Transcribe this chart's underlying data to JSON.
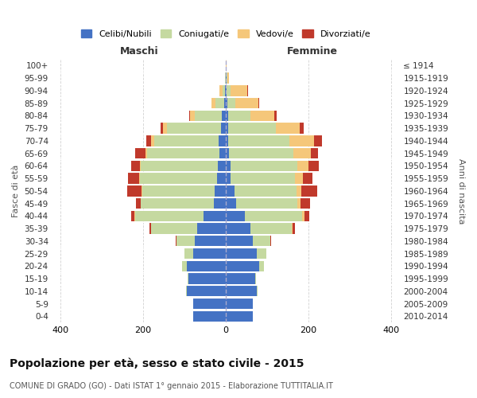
{
  "age_groups": [
    "0-4",
    "5-9",
    "10-14",
    "15-19",
    "20-24",
    "25-29",
    "30-34",
    "35-39",
    "40-44",
    "45-49",
    "50-54",
    "55-59",
    "60-64",
    "65-69",
    "70-74",
    "75-79",
    "80-84",
    "85-89",
    "90-94",
    "95-99",
    "100+"
  ],
  "birth_years": [
    "2010-2014",
    "2005-2009",
    "2000-2004",
    "1995-1999",
    "1990-1994",
    "1985-1989",
    "1980-1984",
    "1975-1979",
    "1970-1974",
    "1965-1969",
    "1960-1964",
    "1955-1959",
    "1950-1954",
    "1945-1949",
    "1940-1944",
    "1935-1939",
    "1930-1934",
    "1925-1929",
    "1920-1924",
    "1915-1919",
    "≤ 1914"
  ],
  "maschi": {
    "celibi": [
      80,
      80,
      95,
      90,
      95,
      80,
      75,
      70,
      55,
      30,
      28,
      22,
      20,
      15,
      18,
      12,
      10,
      5,
      2,
      1,
      0
    ],
    "coniugati": [
      0,
      0,
      1,
      2,
      10,
      20,
      45,
      110,
      165,
      175,
      175,
      185,
      185,
      175,
      155,
      130,
      65,
      20,
      5,
      1,
      0
    ],
    "vedovi": [
      0,
      0,
      0,
      0,
      0,
      0,
      0,
      0,
      1,
      1,
      1,
      2,
      2,
      5,
      8,
      10,
      12,
      10,
      8,
      1,
      0
    ],
    "divorziati": [
      0,
      0,
      0,
      0,
      1,
      1,
      2,
      5,
      8,
      12,
      35,
      28,
      22,
      25,
      12,
      5,
      2,
      0,
      1,
      0,
      0
    ]
  },
  "femmine": {
    "nubili": [
      65,
      65,
      75,
      70,
      80,
      75,
      65,
      60,
      45,
      25,
      20,
      12,
      12,
      8,
      5,
      5,
      5,
      3,
      2,
      1,
      0
    ],
    "coniugate": [
      0,
      0,
      2,
      3,
      12,
      22,
      42,
      100,
      140,
      148,
      150,
      155,
      160,
      155,
      148,
      115,
      55,
      20,
      10,
      2,
      0
    ],
    "vedove": [
      0,
      0,
      0,
      0,
      0,
      0,
      1,
      2,
      5,
      8,
      12,
      20,
      28,
      42,
      60,
      58,
      58,
      55,
      40,
      5,
      1
    ],
    "divorziate": [
      0,
      0,
      0,
      0,
      1,
      1,
      2,
      5,
      12,
      22,
      38,
      22,
      25,
      18,
      20,
      10,
      5,
      2,
      2,
      0,
      0
    ]
  },
  "colors": {
    "celibi": "#4472C4",
    "coniugati": "#c5d9a0",
    "vedovi": "#f5c77a",
    "divorziati": "#c0392b"
  },
  "title": "Popolazione per età, sesso e stato civile - 2015",
  "subtitle": "COMUNE DI GRADO (GO) - Dati ISTAT 1° gennaio 2015 - Elaborazione TUTTITALIA.IT",
  "xlabel_left": "Maschi",
  "xlabel_right": "Femmine",
  "ylabel_left": "Fasce di età",
  "ylabel_right": "Anni di nascita",
  "xlim": 420,
  "background_color": "#ffffff",
  "grid_color": "#cccccc"
}
